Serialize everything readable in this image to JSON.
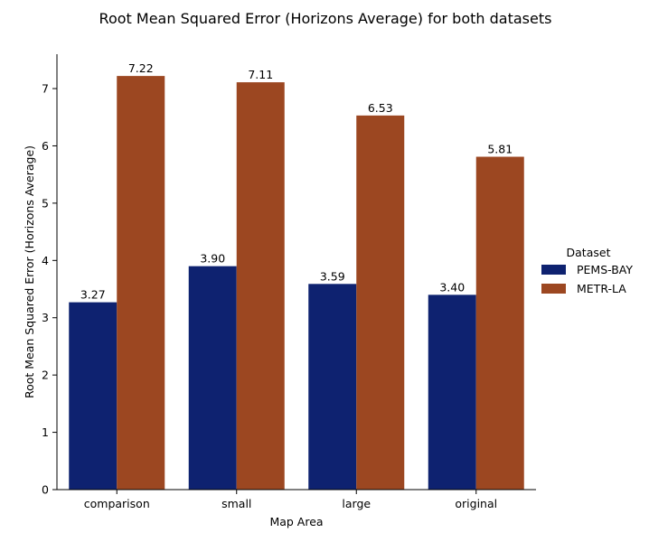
{
  "chart_data": {
    "type": "bar",
    "title": "Root Mean Squared Error (Horizons Average) for both datasets",
    "xlabel": "Map Area",
    "ylabel": "Root Mean Squared Error (Horizons Average)",
    "categories": [
      "comparison",
      "small",
      "large",
      "original"
    ],
    "series": [
      {
        "name": "PEMS-BAY",
        "color": "#0e2270",
        "values": [
          3.27,
          3.9,
          3.59,
          3.4
        ],
        "labels": [
          "3.27",
          "3.90",
          "3.59",
          "3.40"
        ]
      },
      {
        "name": "METR-LA",
        "color": "#9c4721",
        "values": [
          7.22,
          7.11,
          6.53,
          5.81
        ],
        "labels": [
          "7.22",
          "7.11",
          "6.53",
          "5.81"
        ]
      }
    ],
    "ylim": [
      0,
      7.6
    ],
    "yticks": [
      0,
      1,
      2,
      3,
      4,
      5,
      6,
      7
    ],
    "legend": {
      "title": "Dataset",
      "position": "right"
    },
    "grid": false
  }
}
